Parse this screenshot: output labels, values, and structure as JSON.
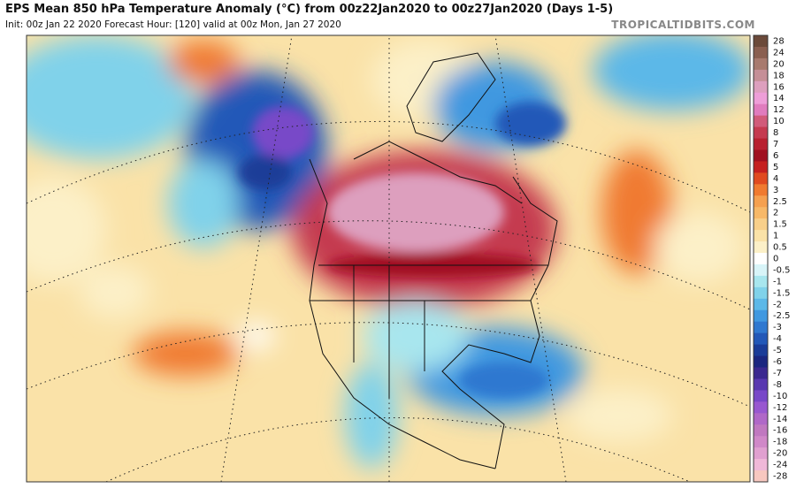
{
  "header": {
    "title": "EPS Mean 850 hPa Temperature Anomaly (°C) from 00z22Jan2020 to 00z27Jan2020 (Days 1-5)",
    "subtitle": "Init: 00z Jan 22 2020   Forecast Hour: [120]   valid at 00z Mon, Jan 27 2020",
    "site": "TROPICALTIDBITS.COM"
  },
  "colorbar": [
    {
      "label": "28",
      "color": "#6b4a3a"
    },
    {
      "label": "24",
      "color": "#8a5f50"
    },
    {
      "label": "20",
      "color": "#a87a6e"
    },
    {
      "label": "18",
      "color": "#c58f97"
    },
    {
      "label": "16",
      "color": "#dd9fbe"
    },
    {
      "label": "14",
      "color": "#ee9ed8"
    },
    {
      "label": "12",
      "color": "#e07cbe"
    },
    {
      "label": "10",
      "color": "#d15b7a"
    },
    {
      "label": "8",
      "color": "#c53a50"
    },
    {
      "label": "7",
      "color": "#b82030"
    },
    {
      "label": "6",
      "color": "#a01020"
    },
    {
      "label": "5",
      "color": "#c52020"
    },
    {
      "label": "4",
      "color": "#e04a20"
    },
    {
      "label": "3",
      "color": "#f07a30"
    },
    {
      "label": "2.5",
      "color": "#f5a050"
    },
    {
      "label": "2",
      "color": "#f7b868"
    },
    {
      "label": "1.5",
      "color": "#f8cf8a"
    },
    {
      "label": "1",
      "color": "#fae2a8"
    },
    {
      "label": "0.5",
      "color": "#fcf0c8"
    },
    {
      "label": "0",
      "color": "#ffffff"
    },
    {
      "label": "-0.5",
      "color": "#d8f4f8"
    },
    {
      "label": "-1",
      "color": "#a8e6ee"
    },
    {
      "label": "-1.5",
      "color": "#80d2ea"
    },
    {
      "label": "-2",
      "color": "#5cb8e8"
    },
    {
      "label": "-2.5",
      "color": "#4098e0"
    },
    {
      "label": "-3",
      "color": "#2f78d0"
    },
    {
      "label": "-4",
      "color": "#2258b8"
    },
    {
      "label": "-5",
      "color": "#1a3c98"
    },
    {
      "label": "-6",
      "color": "#1a2680"
    },
    {
      "label": "-7",
      "color": "#3a2890"
    },
    {
      "label": "-8",
      "color": "#5838b0"
    },
    {
      "label": "-10",
      "color": "#7848c8"
    },
    {
      "label": "-12",
      "color": "#9858d0"
    },
    {
      "label": "-14",
      "color": "#b068c8"
    },
    {
      "label": "-16",
      "color": "#c078c0"
    },
    {
      "label": "-18",
      "color": "#d088c8"
    },
    {
      "label": "-20",
      "color": "#e0a0d0"
    },
    {
      "label": "-24",
      "color": "#f0b8d8"
    },
    {
      "label": "-28",
      "color": "#f8c8c0"
    }
  ]
}
